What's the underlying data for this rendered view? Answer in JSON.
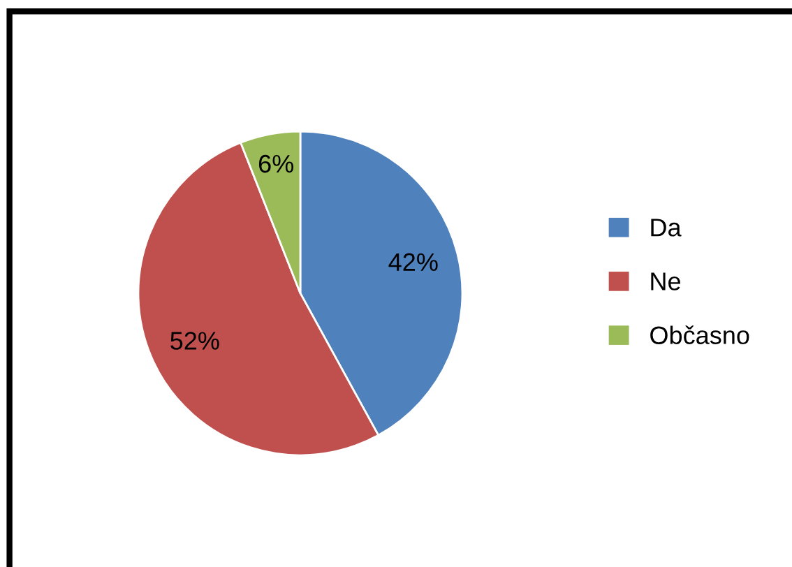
{
  "chart_data": {
    "type": "pie",
    "categories": [
      "Da",
      "Ne",
      "Občasno"
    ],
    "values": [
      42,
      52,
      6
    ],
    "colors": [
      "#4f81bd",
      "#c0504d",
      "#9bbb59"
    ],
    "value_labels": [
      "42%",
      "52%",
      "6%"
    ],
    "legend": "right"
  }
}
